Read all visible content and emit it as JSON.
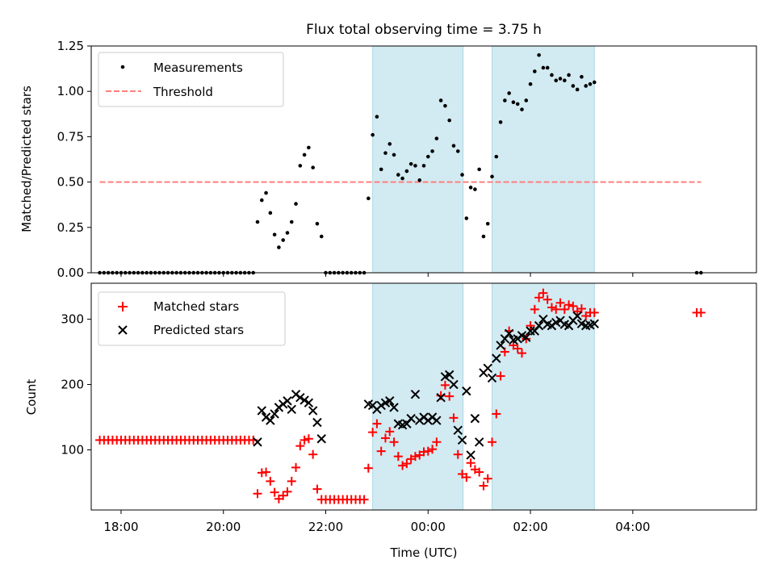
{
  "chart_data": {
    "title": "Flux total observing time = 3.75 h",
    "xlabel": "Time (UTC)",
    "x_unit": "hours (UTC)",
    "xlim": [
      "17:25",
      "06:25"
    ],
    "x_ticks": [
      {
        "t": "18:00",
        "label": "18:00"
      },
      {
        "t": "20:00",
        "label": "20:00"
      },
      {
        "t": "22:00",
        "label": "22:00"
      },
      {
        "t": "00:00",
        "label": "00:00"
      },
      {
        "t": "02:00",
        "label": "02:00"
      },
      {
        "t": "04:00",
        "label": "04:00"
      }
    ],
    "shaded_intervals": [
      {
        "start": "22:55",
        "end": "00:41"
      },
      {
        "start": "01:15",
        "end": "03:15"
      }
    ],
    "colors": {
      "measurements": "#000000",
      "threshold": "#ff7f7f",
      "matched": "#ff0000",
      "predicted": "#000000",
      "shade": "#add8e6"
    },
    "top_panel": {
      "type": "scatter",
      "ylabel": "Matched/Predicted stars",
      "ylim": [
        0,
        1.25
      ],
      "y_ticks": [
        "0.00",
        "0.25",
        "0.50",
        "0.75",
        "1.00",
        "1.25"
      ],
      "legend": {
        "placement": "upper left",
        "entries": [
          "Measurements",
          "Threshold"
        ]
      },
      "threshold": {
        "y": 0.5,
        "x_start": "17:35",
        "x_end": "05:20"
      },
      "measurements": [
        [
          "17:35",
          0
        ],
        [
          "17:40",
          0
        ],
        [
          "17:45",
          0
        ],
        [
          "17:50",
          0
        ],
        [
          "17:55",
          0
        ],
        [
          "18:00",
          0
        ],
        [
          "18:05",
          0
        ],
        [
          "18:10",
          0
        ],
        [
          "18:15",
          0
        ],
        [
          "18:20",
          0
        ],
        [
          "18:25",
          0
        ],
        [
          "18:30",
          0
        ],
        [
          "18:35",
          0
        ],
        [
          "18:40",
          0
        ],
        [
          "18:45",
          0
        ],
        [
          "18:50",
          0
        ],
        [
          "18:55",
          0
        ],
        [
          "19:00",
          0
        ],
        [
          "19:05",
          0
        ],
        [
          "19:10",
          0
        ],
        [
          "19:15",
          0
        ],
        [
          "19:20",
          0
        ],
        [
          "19:25",
          0
        ],
        [
          "19:30",
          0
        ],
        [
          "19:35",
          0
        ],
        [
          "19:40",
          0
        ],
        [
          "19:45",
          0
        ],
        [
          "19:50",
          0
        ],
        [
          "19:55",
          0
        ],
        [
          "20:00",
          0
        ],
        [
          "20:05",
          0
        ],
        [
          "20:10",
          0
        ],
        [
          "20:15",
          0
        ],
        [
          "20:20",
          0
        ],
        [
          "20:25",
          0
        ],
        [
          "20:30",
          0
        ],
        [
          "20:35",
          0
        ],
        [
          "20:40",
          0.28
        ],
        [
          "20:45",
          0.4
        ],
        [
          "20:50",
          0.44
        ],
        [
          "20:55",
          0.33
        ],
        [
          "21:00",
          0.21
        ],
        [
          "21:05",
          0.14
        ],
        [
          "21:10",
          0.18
        ],
        [
          "21:15",
          0.22
        ],
        [
          "21:20",
          0.28
        ],
        [
          "21:25",
          0.38
        ],
        [
          "21:30",
          0.59
        ],
        [
          "21:35",
          0.65
        ],
        [
          "21:40",
          0.69
        ],
        [
          "21:45",
          0.58
        ],
        [
          "21:50",
          0.27
        ],
        [
          "21:55",
          0.2
        ],
        [
          "22:00",
          0
        ],
        [
          "22:05",
          0
        ],
        [
          "22:10",
          0
        ],
        [
          "22:15",
          0
        ],
        [
          "22:20",
          0
        ],
        [
          "22:25",
          0
        ],
        [
          "22:30",
          0
        ],
        [
          "22:35",
          0
        ],
        [
          "22:40",
          0
        ],
        [
          "22:45",
          0
        ],
        [
          "22:50",
          0.41
        ],
        [
          "22:55",
          0.76
        ],
        [
          "23:00",
          0.86
        ],
        [
          "23:05",
          0.57
        ],
        [
          "23:10",
          0.66
        ],
        [
          "23:15",
          0.71
        ],
        [
          "23:20",
          0.65
        ],
        [
          "23:25",
          0.54
        ],
        [
          "23:30",
          0.52
        ],
        [
          "23:35",
          0.56
        ],
        [
          "23:40",
          0.6
        ],
        [
          "23:45",
          0.59
        ],
        [
          "23:50",
          0.51
        ],
        [
          "23:55",
          0.59
        ],
        [
          "00:00",
          0.64
        ],
        [
          "00:05",
          0.67
        ],
        [
          "00:10",
          0.74
        ],
        [
          "00:15",
          0.95
        ],
        [
          "00:20",
          0.92
        ],
        [
          "00:25",
          0.84
        ],
        [
          "00:30",
          0.7
        ],
        [
          "00:35",
          0.67
        ],
        [
          "00:40",
          0.54
        ],
        [
          "00:45",
          0.3
        ],
        [
          "00:50",
          0.47
        ],
        [
          "00:55",
          0.46
        ],
        [
          "01:00",
          0.57
        ],
        [
          "01:05",
          0.2
        ],
        [
          "01:10",
          0.27
        ],
        [
          "01:15",
          0.53
        ],
        [
          "01:20",
          0.64
        ],
        [
          "01:25",
          0.83
        ],
        [
          "01:30",
          0.95
        ],
        [
          "01:35",
          0.99
        ],
        [
          "01:40",
          0.94
        ],
        [
          "01:45",
          0.93
        ],
        [
          "01:50",
          0.9
        ],
        [
          "01:55",
          0.95
        ],
        [
          "02:00",
          1.04
        ],
        [
          "02:05",
          1.11
        ],
        [
          "02:10",
          1.2
        ],
        [
          "02:15",
          1.13
        ],
        [
          "02:20",
          1.13
        ],
        [
          "02:25",
          1.09
        ],
        [
          "02:30",
          1.06
        ],
        [
          "02:35",
          1.07
        ],
        [
          "02:40",
          1.06
        ],
        [
          "02:45",
          1.09
        ],
        [
          "02:50",
          1.03
        ],
        [
          "02:55",
          1.01
        ],
        [
          "03:00",
          1.08
        ],
        [
          "03:05",
          1.03
        ],
        [
          "03:10",
          1.04
        ],
        [
          "03:15",
          1.05
        ],
        [
          "05:15",
          0
        ],
        [
          "05:20",
          0
        ]
      ]
    },
    "bottom_panel": {
      "type": "scatter",
      "ylabel": "Count",
      "ylim": [
        8,
        355
      ],
      "y_ticks": [
        {
          "v": 100,
          "label": "100"
        },
        {
          "v": 200,
          "label": "200"
        },
        {
          "v": 300,
          "label": "300"
        }
      ],
      "legend": {
        "placement": "upper left",
        "entries": [
          "Matched stars",
          "Predicted stars"
        ]
      },
      "matched": [
        [
          "17:35",
          115
        ],
        [
          "17:40",
          115
        ],
        [
          "17:45",
          115
        ],
        [
          "17:50",
          115
        ],
        [
          "17:55",
          115
        ],
        [
          "18:00",
          115
        ],
        [
          "18:05",
          115
        ],
        [
          "18:10",
          115
        ],
        [
          "18:15",
          115
        ],
        [
          "18:20",
          115
        ],
        [
          "18:25",
          115
        ],
        [
          "18:30",
          115
        ],
        [
          "18:35",
          115
        ],
        [
          "18:40",
          115
        ],
        [
          "18:45",
          115
        ],
        [
          "18:50",
          115
        ],
        [
          "18:55",
          115
        ],
        [
          "19:00",
          115
        ],
        [
          "19:05",
          115
        ],
        [
          "19:10",
          115
        ],
        [
          "19:15",
          115
        ],
        [
          "19:20",
          115
        ],
        [
          "19:25",
          115
        ],
        [
          "19:30",
          115
        ],
        [
          "19:35",
          115
        ],
        [
          "19:40",
          115
        ],
        [
          "19:45",
          115
        ],
        [
          "19:50",
          115
        ],
        [
          "19:55",
          115
        ],
        [
          "20:00",
          115
        ],
        [
          "20:05",
          115
        ],
        [
          "20:10",
          115
        ],
        [
          "20:15",
          115
        ],
        [
          "20:20",
          115
        ],
        [
          "20:25",
          115
        ],
        [
          "20:30",
          115
        ],
        [
          "20:35",
          115
        ],
        [
          "20:40",
          33
        ],
        [
          "20:45",
          65
        ],
        [
          "20:50",
          66
        ],
        [
          "20:55",
          52
        ],
        [
          "21:00",
          35
        ],
        [
          "21:05",
          25
        ],
        [
          "21:10",
          30
        ],
        [
          "21:15",
          36
        ],
        [
          "21:20",
          52
        ],
        [
          "21:25",
          73
        ],
        [
          "21:30",
          106
        ],
        [
          "21:35",
          115
        ],
        [
          "21:40",
          117
        ],
        [
          "21:45",
          93
        ],
        [
          "21:50",
          40
        ],
        [
          "21:55",
          24
        ],
        [
          "22:00",
          24
        ],
        [
          "22:05",
          24
        ],
        [
          "22:10",
          24
        ],
        [
          "22:15",
          24
        ],
        [
          "22:20",
          24
        ],
        [
          "22:25",
          24
        ],
        [
          "22:30",
          24
        ],
        [
          "22:35",
          24
        ],
        [
          "22:40",
          24
        ],
        [
          "22:45",
          24
        ],
        [
          "22:50",
          72
        ],
        [
          "22:55",
          127
        ],
        [
          "23:00",
          140
        ],
        [
          "23:05",
          98
        ],
        [
          "23:10",
          118
        ],
        [
          "23:15",
          128
        ],
        [
          "23:20",
          112
        ],
        [
          "23:25",
          90
        ],
        [
          "23:30",
          76
        ],
        [
          "23:35",
          79
        ],
        [
          "23:40",
          86
        ],
        [
          "23:45",
          90
        ],
        [
          "23:50",
          92
        ],
        [
          "23:55",
          97
        ],
        [
          "00:00",
          98
        ],
        [
          "00:05",
          101
        ],
        [
          "00:10",
          112
        ],
        [
          "00:15",
          183
        ],
        [
          "00:20",
          199
        ],
        [
          "00:25",
          182
        ],
        [
          "00:30",
          149
        ],
        [
          "00:35",
          93
        ],
        [
          "00:40",
          63
        ],
        [
          "00:45",
          58
        ],
        [
          "00:50",
          80
        ],
        [
          "00:55",
          70
        ],
        [
          "01:00",
          66
        ],
        [
          "01:05",
          45
        ],
        [
          "01:10",
          56
        ],
        [
          "01:15",
          112
        ],
        [
          "01:20",
          155
        ],
        [
          "01:25",
          213
        ],
        [
          "01:30",
          250
        ],
        [
          "01:35",
          282
        ],
        [
          "01:40",
          260
        ],
        [
          "01:45",
          255
        ],
        [
          "01:50",
          248
        ],
        [
          "01:55",
          270
        ],
        [
          "02:00",
          290
        ],
        [
          "02:05",
          315
        ],
        [
          "02:10",
          333
        ],
        [
          "02:15",
          340
        ],
        [
          "02:20",
          330
        ],
        [
          "02:25",
          318
        ],
        [
          "02:30",
          315
        ],
        [
          "02:35",
          325
        ],
        [
          "02:40",
          315
        ],
        [
          "02:45",
          322
        ],
        [
          "02:50",
          320
        ],
        [
          "02:55",
          312
        ],
        [
          "03:00",
          316
        ],
        [
          "03:05",
          305
        ],
        [
          "03:10",
          310
        ],
        [
          "03:15",
          310
        ],
        [
          "05:15",
          310
        ],
        [
          "05:20",
          310
        ]
      ],
      "predicted": [
        [
          "20:40",
          112
        ],
        [
          "20:45",
          160
        ],
        [
          "20:50",
          150
        ],
        [
          "20:55",
          145
        ],
        [
          "21:00",
          155
        ],
        [
          "21:05",
          165
        ],
        [
          "21:10",
          170
        ],
        [
          "21:15",
          175
        ],
        [
          "21:20",
          162
        ],
        [
          "21:25",
          185
        ],
        [
          "21:30",
          180
        ],
        [
          "21:35",
          176
        ],
        [
          "21:40",
          172
        ],
        [
          "21:45",
          160
        ],
        [
          "21:50",
          142
        ],
        [
          "21:55",
          117
        ],
        [
          "22:50",
          170
        ],
        [
          "22:55",
          168
        ],
        [
          "23:00",
          162
        ],
        [
          "23:05",
          168
        ],
        [
          "23:10",
          172
        ],
        [
          "23:15",
          175
        ],
        [
          "23:20",
          165
        ],
        [
          "23:25",
          140
        ],
        [
          "23:30",
          138
        ],
        [
          "23:35",
          140
        ],
        [
          "23:40",
          148
        ],
        [
          "23:45",
          185
        ],
        [
          "23:50",
          145
        ],
        [
          "23:55",
          150
        ],
        [
          "00:00",
          145
        ],
        [
          "00:05",
          150
        ],
        [
          "00:10",
          145
        ],
        [
          "00:15",
          180
        ],
        [
          "00:20",
          212
        ],
        [
          "00:25",
          215
        ],
        [
          "00:30",
          200
        ],
        [
          "00:35",
          130
        ],
        [
          "00:40",
          115
        ],
        [
          "00:45",
          190
        ],
        [
          "00:50",
          92
        ],
        [
          "00:55",
          148
        ],
        [
          "01:00",
          112
        ],
        [
          "01:05",
          218
        ],
        [
          "01:10",
          225
        ],
        [
          "01:15",
          210
        ],
        [
          "01:20",
          240
        ],
        [
          "01:25",
          260
        ],
        [
          "01:30",
          270
        ],
        [
          "01:35",
          278
        ],
        [
          "01:40",
          268
        ],
        [
          "01:45",
          270
        ],
        [
          "01:50",
          275
        ],
        [
          "01:55",
          272
        ],
        [
          "02:00",
          282
        ],
        [
          "02:05",
          282
        ],
        [
          "02:10",
          290
        ],
        [
          "02:15",
          300
        ],
        [
          "02:20",
          292
        ],
        [
          "02:25",
          290
        ],
        [
          "02:30",
          295
        ],
        [
          "02:35",
          298
        ],
        [
          "02:40",
          292
        ],
        [
          "02:45",
          290
        ],
        [
          "02:50",
          298
        ],
        [
          "02:55",
          305
        ],
        [
          "03:00",
          293
        ],
        [
          "03:05",
          290
        ],
        [
          "03:10",
          291
        ],
        [
          "03:15",
          293
        ]
      ]
    }
  }
}
